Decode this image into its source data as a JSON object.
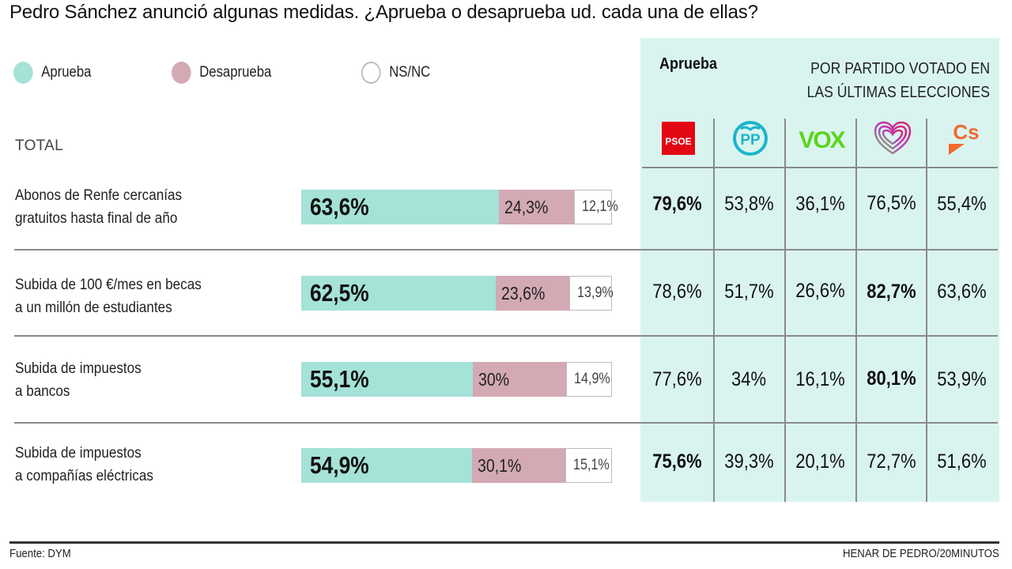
{
  "title": "Pedro Sánchez anunció algunas medidas. ¿Aprueba o desaprueba ud. cada una de ellas?",
  "legend": [
    {
      "label": "Aprueba",
      "color": "#a5e2d8"
    },
    {
      "label": "Desaprueba",
      "color": "#d3a9b4"
    },
    {
      "label": "NS/NC",
      "color": "#ffffff"
    }
  ],
  "total_label": "TOTAL",
  "panel": {
    "heading": "Aprueba",
    "subheading_line1": "POR PARTIDO VOTADO EN",
    "subheading_line2": "LAS ÚLTIMAS ELECCIONES",
    "background": "#d9f4ef",
    "parties": [
      {
        "name": "PSOE",
        "logo_text": "PSOE",
        "color": "#e30613"
      },
      {
        "name": "PP",
        "logo_text": "PP",
        "color": "#1bb5c8"
      },
      {
        "name": "VOX",
        "logo_text": "VOX",
        "color": "#5bd51c"
      },
      {
        "name": "Sumar",
        "logo_text": "",
        "color": "#8b3fc7"
      },
      {
        "name": "Cs",
        "logo_text": "Cs",
        "color": "#f26a2e"
      }
    ]
  },
  "chart_data": {
    "type": "bar",
    "title": "Pedro Sánchez anunció algunas medidas. ¿Aprueba o desaprueba ud. cada una de ellas?",
    "stacked": true,
    "orientation": "horizontal",
    "categories": [
      "Abonos de Renfe cercanías gratuitos hasta final de año",
      "Subida de 100 €/mes en becas a un millón de estudiantes",
      "Subida de impuestos a bancos",
      "Subida de impuestos a compañías eléctricas"
    ],
    "series": [
      {
        "name": "Aprueba",
        "values": [
          63.6,
          62.5,
          55.1,
          54.9
        ]
      },
      {
        "name": "Desaprueba",
        "values": [
          24.3,
          23.6,
          30,
          30.1
        ]
      },
      {
        "name": "NS/NC",
        "values": [
          12.1,
          13.9,
          14.9,
          15.1
        ]
      }
    ],
    "xlim": [
      0,
      100
    ],
    "legend_position": "top-left"
  },
  "rows": [
    {
      "label_line1": "Abonos de Renfe cercanías",
      "label_line2": "gratuitos hasta final de año",
      "aprueba": 63.6,
      "desaprueba": 24.3,
      "nsnc": 12.1,
      "aprueba_text": "63,6%",
      "desaprueba_text": "24,3%",
      "nsnc_text": "12,1%",
      "parties": [
        {
          "text": "79,6%",
          "bold": true
        },
        {
          "text": "53,8%",
          "bold": false
        },
        {
          "text": "36,1%",
          "bold": false
        },
        {
          "text": "76,5%",
          "bold": false
        },
        {
          "text": "55,4%",
          "bold": false
        }
      ]
    },
    {
      "label_line1": "Subida de 100 €/mes en becas",
      "label_line2": "a un millón de estudiantes",
      "aprueba": 62.5,
      "desaprueba": 23.6,
      "nsnc": 13.9,
      "aprueba_text": "62,5%",
      "desaprueba_text": "23,6%",
      "nsnc_text": "13,9%",
      "parties": [
        {
          "text": "78,6%",
          "bold": false
        },
        {
          "text": "51,7%",
          "bold": false
        },
        {
          "text": "26,6%",
          "bold": false
        },
        {
          "text": "82,7%",
          "bold": true
        },
        {
          "text": "63,6%",
          "bold": false
        }
      ]
    },
    {
      "label_line1": "Subida de impuestos",
      "label_line2": "a bancos",
      "aprueba": 55.1,
      "desaprueba": 30,
      "nsnc": 14.9,
      "aprueba_text": "55,1%",
      "desaprueba_text": "30%",
      "nsnc_text": "14,9%",
      "parties": [
        {
          "text": "77,6%",
          "bold": false
        },
        {
          "text": "34%",
          "bold": false
        },
        {
          "text": "16,1%",
          "bold": false
        },
        {
          "text": "80,1%",
          "bold": true
        },
        {
          "text": "53,9%",
          "bold": false
        }
      ]
    },
    {
      "label_line1": "Subida de impuestos",
      "label_line2": "a compañías eléctricas",
      "aprueba": 54.9,
      "desaprueba": 30.1,
      "nsnc": 15.1,
      "aprueba_text": "54,9%",
      "desaprueba_text": "30,1%",
      "nsnc_text": "15,1%",
      "parties": [
        {
          "text": "75,6%",
          "bold": true
        },
        {
          "text": "39,3%",
          "bold": false
        },
        {
          "text": "20,1%",
          "bold": false
        },
        {
          "text": "72,7%",
          "bold": false
        },
        {
          "text": "51,6%",
          "bold": false
        }
      ]
    }
  ],
  "footer": {
    "source": "Fuente: DYM",
    "credit": "HENAR DE PEDRO/20MINUTOS"
  }
}
